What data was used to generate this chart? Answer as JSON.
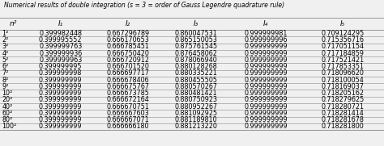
{
  "title": "Numerical results of double integration (s = 3 = order of Gauss Legendre quadrature rule)",
  "col_headers": [
    "n²",
    "I₁",
    "I₂",
    "I₃",
    "I₄",
    "I₅"
  ],
  "rows": [
    [
      "1²",
      "0.399982448",
      "0.667296789",
      "0.860047531",
      "0.999999981",
      "0.709124295"
    ],
    [
      "2²",
      "0.399995552",
      "0.666170653",
      "0.865150053",
      "0.999999996",
      "0.715356716"
    ],
    [
      "3²",
      "0.399999763",
      "0.666785451",
      "0.875761545",
      "0.999999999",
      "0.717051154"
    ],
    [
      "4²",
      "0.399999936",
      "0.666750420",
      "0.876458062",
      "0.999999999",
      "0.717184859"
    ],
    [
      "5²",
      "0.399999963",
      "0.666720912",
      "0.878066940",
      "0.999999999",
      "0.717521421"
    ],
    [
      "6²",
      "0.399999995",
      "0.666701520",
      "0.880128268",
      "0.999999999",
      "0.717853351"
    ],
    [
      "7²",
      "0.399999998",
      "0.666697717",
      "0.880335221",
      "0.999999999",
      "0.718096620"
    ],
    [
      "8²",
      "0.399999999",
      "0.666678406",
      "0.880455505",
      "0.999999999",
      "0.718100054"
    ],
    [
      "9²",
      "0.399999999",
      "0.666675767",
      "0.880570267",
      "0.999999999",
      "0.718169037"
    ],
    [
      "10²",
      "0.399999999",
      "0.666673785",
      "0.880481421",
      "0.999999999",
      "0.718205162"
    ],
    [
      "20²",
      "0.399999999",
      "0.666672164",
      "0.880750923",
      "0.999999999",
      "0.718279625"
    ],
    [
      "40²",
      "0.399999999",
      "0.666670751",
      "0.880952267",
      "0.999999999",
      "0.718280721"
    ],
    [
      "60²",
      "0.399999999",
      "0.666667603",
      "0.881092925",
      "0.999999999",
      "0.718281414"
    ],
    [
      "80²",
      "0.399999999",
      "0.666667071",
      "0.881189810",
      "0.999999999",
      "0.718281678"
    ],
    [
      "100²",
      "0.399999999",
      "0.666666180",
      "0.881213220",
      "0.999999999",
      "0.718281800"
    ]
  ],
  "title_fontsize": 5.5,
  "header_fontsize": 6.5,
  "cell_fontsize": 5.8,
  "bg_color": "#f0f0f0",
  "line_color": "#888888",
  "title_color": "#000000",
  "cell_color": "#000000"
}
